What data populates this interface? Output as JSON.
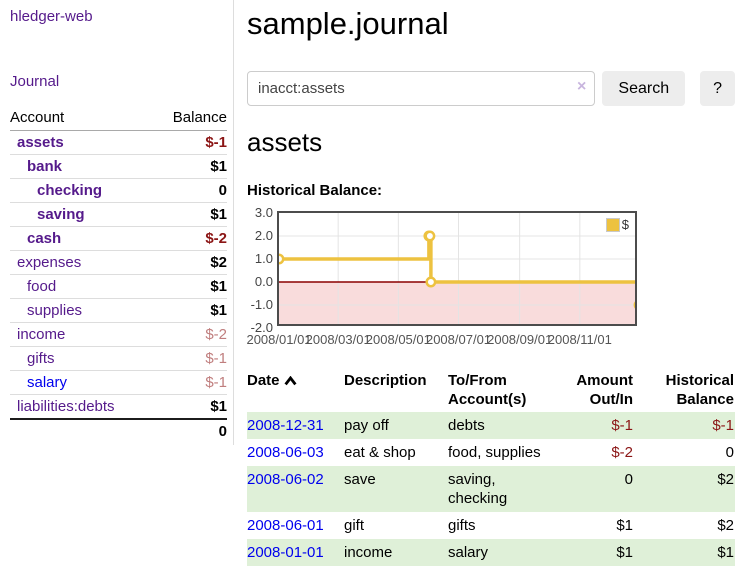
{
  "app": {
    "title": "hledger-web"
  },
  "sidebar": {
    "journal_link": "Journal",
    "columns": {
      "account": "Account",
      "balance": "Balance"
    },
    "accounts": [
      {
        "name": "assets",
        "balance": "$-1",
        "indent": 1,
        "in_query": true,
        "balance_style": "neg-strong",
        "link_color": "purple"
      },
      {
        "name": "bank",
        "balance": "$1",
        "indent": 2,
        "in_query": true,
        "balance_style": "plain",
        "link_color": "purple"
      },
      {
        "name": "checking",
        "balance": "0",
        "indent": 3,
        "in_query": true,
        "balance_style": "plain",
        "link_color": "purple"
      },
      {
        "name": "saving",
        "balance": "$1",
        "indent": 3,
        "in_query": true,
        "balance_style": "plain",
        "link_color": "purple"
      },
      {
        "name": "cash",
        "balance": "$-2",
        "indent": 2,
        "in_query": true,
        "balance_style": "neg-strong",
        "link_color": "purple"
      },
      {
        "name": "expenses",
        "balance": "$2",
        "indent": 1,
        "in_query": false,
        "balance_style": "plain",
        "link_color": "purple"
      },
      {
        "name": "food",
        "balance": "$1",
        "indent": 2,
        "in_query": false,
        "balance_style": "plain",
        "link_color": "purple"
      },
      {
        "name": "supplies",
        "balance": "$1",
        "indent": 2,
        "in_query": false,
        "balance_style": "plain",
        "link_color": "purple"
      },
      {
        "name": "income",
        "balance": "$-2",
        "indent": 1,
        "in_query": false,
        "balance_style": "neg-soft",
        "link_color": "purple"
      },
      {
        "name": "gifts",
        "balance": "$-1",
        "indent": 2,
        "in_query": false,
        "balance_style": "neg-soft",
        "link_color": "purple"
      },
      {
        "name": "salary",
        "balance": "$-1",
        "indent": 2,
        "in_query": false,
        "balance_style": "neg-soft",
        "link_color": "blue"
      },
      {
        "name": "liabilities:debts",
        "balance": "$1",
        "indent": 1,
        "in_query": false,
        "balance_style": "plain",
        "link_color": "purple"
      }
    ],
    "total": "0"
  },
  "main": {
    "title": "sample.journal",
    "search": {
      "value": "inacct:assets",
      "clear_icon": "×",
      "button_label": "Search",
      "help_label": "?"
    },
    "account_heading": "assets",
    "chart_label": "Historical Balance:"
  },
  "chart_data": {
    "type": "line",
    "line_style": "step",
    "title": "Historical Balance",
    "series": [
      {
        "name": "$",
        "color": "#edc240",
        "points": [
          [
            "2008/01/01",
            1
          ],
          [
            "2008/06/01",
            2
          ],
          [
            "2008/06/02",
            2
          ],
          [
            "2008/06/03",
            0
          ],
          [
            "2008/12/31",
            -1
          ]
        ]
      }
    ],
    "xlim": [
      "2008/01/01",
      "2008/12/31"
    ],
    "ylim": [
      -2,
      3
    ],
    "x_ticks": [
      "2008/01/01",
      "2008/03/01",
      "2008/05/01",
      "2008/07/01",
      "2008/09/01",
      "2008/11/01"
    ],
    "y_ticks": [
      "3.0",
      "2.0",
      "1.0",
      "0.0",
      "-1.0",
      "-2.0"
    ],
    "grid": true,
    "legend": {
      "label": "$",
      "position": "top-right"
    },
    "colors": {
      "negative_region": "#f9dcdc",
      "zero_line": "#8b0000",
      "grid_line": "#e4e4e4",
      "border": "#4c4c4c",
      "tick_text": "#545454"
    }
  },
  "register": {
    "columns": [
      {
        "label": "Date",
        "sortable": true
      },
      {
        "label": "Description"
      },
      {
        "label": "To/From Account(s)"
      },
      {
        "label": "Amount Out/In"
      },
      {
        "label": "Historical Balance"
      }
    ],
    "rows": [
      {
        "date": "2008-12-31",
        "description": "pay off",
        "accounts": "debts",
        "amount": "$-1",
        "balance": "$-1",
        "amount_negative": true,
        "balance_negative": true
      },
      {
        "date": "2008-06-03",
        "description": "eat & shop",
        "accounts": "food, supplies",
        "amount": "$-2",
        "balance": "0",
        "amount_negative": true,
        "balance_negative": false
      },
      {
        "date": "2008-06-02",
        "description": "save",
        "accounts": "saving, checking",
        "amount": "0",
        "balance": "$2",
        "amount_negative": false,
        "balance_negative": false
      },
      {
        "date": "2008-06-01",
        "description": "gift",
        "accounts": "gifts",
        "amount": "$1",
        "balance": "$2",
        "amount_negative": false,
        "balance_negative": false
      },
      {
        "date": "2008-01-01",
        "description": "income",
        "accounts": "salary",
        "amount": "$1",
        "balance": "$1",
        "amount_negative": false,
        "balance_negative": false
      }
    ]
  }
}
